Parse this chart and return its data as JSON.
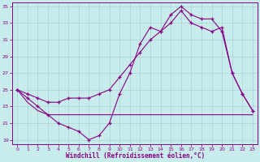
{
  "xlabel": "Windchill (Refroidissement éolien,°C)",
  "bg_color": "#c8ecec",
  "grid_color": "#a8d4d4",
  "line_color": "#880088",
  "xlim": [
    -0.5,
    23.5
  ],
  "ylim": [
    18.5,
    35.5
  ],
  "yticks": [
    19,
    21,
    23,
    25,
    27,
    29,
    31,
    33,
    35
  ],
  "xticks": [
    0,
    1,
    2,
    3,
    4,
    5,
    6,
    7,
    8,
    9,
    10,
    11,
    12,
    13,
    14,
    15,
    16,
    17,
    18,
    19,
    20,
    21,
    22,
    23
  ],
  "line1_x": [
    0,
    1,
    2,
    3,
    4,
    5,
    6,
    7,
    8,
    9,
    10,
    11,
    12,
    13,
    14,
    15,
    16,
    17,
    18,
    19,
    20,
    21,
    22,
    23
  ],
  "line1_y": [
    25,
    24,
    23,
    22,
    21,
    20.5,
    20,
    19,
    19.5,
    21,
    24.5,
    27,
    30.5,
    32.5,
    32,
    34,
    35,
    34,
    33.5,
    33.5,
    32,
    27,
    24.5,
    22.5
  ],
  "line2_x": [
    0,
    1,
    2,
    3,
    4,
    5,
    6,
    7,
    8,
    9,
    10,
    11,
    12,
    13,
    14,
    15,
    16,
    17,
    18,
    19,
    20,
    21,
    22,
    23
  ],
  "line2_y": [
    25,
    24.5,
    24,
    23.5,
    23.5,
    24,
    24,
    24,
    24.5,
    25,
    26.5,
    28,
    29.5,
    31,
    32,
    33,
    34.5,
    33,
    32.5,
    32,
    32.5,
    27,
    24.5,
    22.5
  ],
  "line3_x": [
    0,
    1,
    2,
    3,
    4,
    5,
    6,
    7,
    8,
    9,
    10,
    11,
    12,
    13,
    14,
    15,
    16,
    17,
    18,
    19,
    20,
    21,
    22,
    23
  ],
  "line3_y": [
    25,
    23.5,
    22.5,
    22,
    22,
    22,
    22,
    22,
    22,
    22,
    22,
    22,
    22,
    22,
    22,
    22,
    22,
    22,
    22,
    22,
    22,
    22,
    22,
    22
  ]
}
